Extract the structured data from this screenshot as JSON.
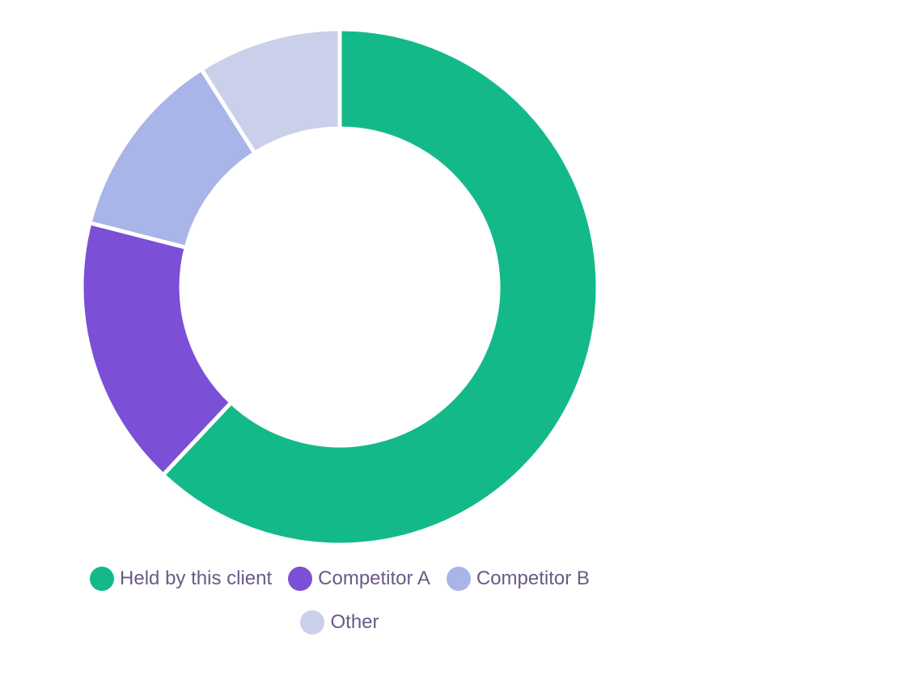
{
  "chart_data": {
    "type": "pie",
    "variant": "donut",
    "title": "",
    "series": [
      {
        "name": "Held by this client",
        "value": 62,
        "color": "#14b98a"
      },
      {
        "name": "Competitor A",
        "value": 17,
        "color": "#7b4fd6"
      },
      {
        "name": "Competitor B",
        "value": 12,
        "color": "#a9b4e8"
      },
      {
        "name": "Other",
        "value": 9,
        "color": "#cacfea"
      }
    ],
    "start_angle_deg": 0,
    "direction": "clockwise",
    "legend_position": "bottom"
  }
}
